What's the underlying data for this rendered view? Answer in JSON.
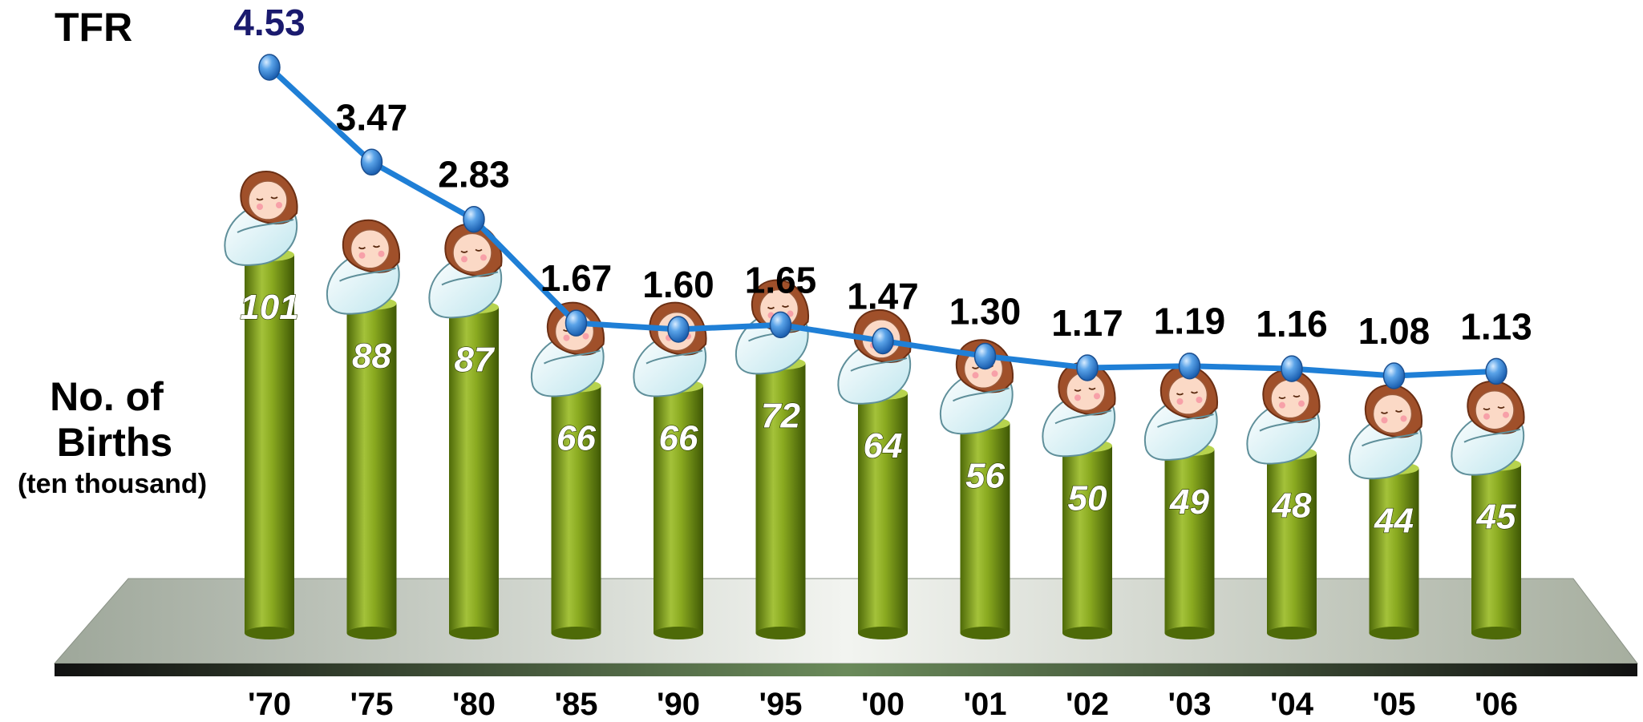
{
  "chart_data": {
    "type": "bar",
    "categories": [
      "'70",
      "'75",
      "'80",
      "'85",
      "'90",
      "'95",
      "'00",
      "'01",
      "'02",
      "'03",
      "'04",
      "'05",
      "'06"
    ],
    "series": [
      {
        "name": "No. of Births (ten thousand)",
        "type": "bar",
        "values": [
          101,
          88,
          87,
          66,
          66,
          72,
          64,
          56,
          50,
          49,
          48,
          44,
          45
        ],
        "labels": [
          "101",
          "88",
          "87",
          "66",
          "66",
          "72",
          "64",
          "56",
          "50",
          "49",
          "48",
          "44",
          "45"
        ],
        "color": "#7a9a12"
      },
      {
        "name": "TFR",
        "type": "line",
        "values": [
          4.53,
          3.47,
          2.83,
          1.67,
          1.6,
          1.65,
          1.47,
          1.3,
          1.17,
          1.19,
          1.16,
          1.08,
          1.13
        ],
        "labels": [
          "4.53",
          "3.47",
          "2.83",
          "1.67",
          "1.60",
          "1.65",
          "1.47",
          "1.30",
          "1.17",
          "1.19",
          "1.16",
          "1.08",
          "1.13"
        ],
        "color": "#1f7fd6"
      }
    ],
    "ylabel_tfr": "TFR",
    "ylabel_births_line1": "No. of",
    "ylabel_births_line2": "Births",
    "ylabel_births_unit": "(ten thousand)",
    "bar_ylim": [
      0,
      101
    ],
    "tfr_ylim": [
      1.08,
      4.53
    ],
    "grid": false,
    "legend": "none",
    "bar_icon": "swaddled-baby-icon"
  }
}
